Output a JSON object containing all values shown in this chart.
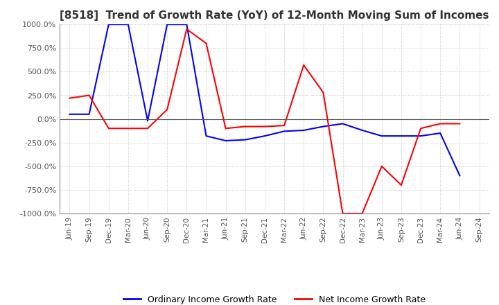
{
  "title": "[8518]  Trend of Growth Rate (YoY) of 12-Month Moving Sum of Incomes",
  "ylim": [
    -1000,
    1000
  ],
  "yticks": [
    -1000,
    -750,
    -500,
    -250,
    0,
    250,
    500,
    750,
    1000
  ],
  "background_color": "#ffffff",
  "grid_color": "#aaaaaa",
  "legend_labels": [
    "Ordinary Income Growth Rate",
    "Net Income Growth Rate"
  ],
  "line_colors": [
    "#0000ff",
    "#ff0000"
  ],
  "dates": [
    "Jun-19",
    "Sep-19",
    "Dec-19",
    "Mar-20",
    "Jun-20",
    "Sep-20",
    "Dec-20",
    "Mar-21",
    "Jun-21",
    "Sep-21",
    "Dec-21",
    "Mar-22",
    "Jun-22",
    "Sep-22",
    "Dec-22",
    "Mar-23",
    "Jun-23",
    "Sep-23",
    "Dec-23",
    "Mar-24",
    "Jun-24",
    "Sep-24"
  ],
  "ordinary_income": [
    50,
    50,
    1000,
    1000,
    -20,
    1000,
    1000,
    -180,
    -230,
    -220,
    -180,
    -130,
    -120,
    -80,
    -50,
    -120,
    -180,
    -180,
    -180,
    -150,
    -600,
    null
  ],
  "net_income": [
    220,
    250,
    -100,
    -100,
    -100,
    100,
    950,
    800,
    -100,
    -80,
    -80,
    -70,
    570,
    280,
    -1000,
    -1000,
    -500,
    -700,
    -100,
    -50,
    -50,
    null
  ]
}
